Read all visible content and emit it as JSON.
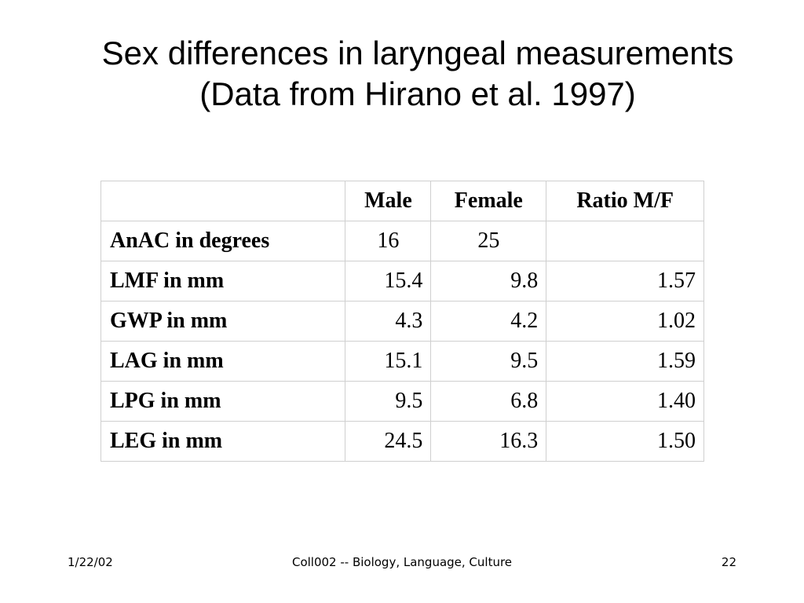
{
  "slide": {
    "title_line1": "Sex differences in laryngeal measurements",
    "title_line2": "(Data from Hirano et al. 1997)"
  },
  "table": {
    "headers": [
      "",
      "Male",
      "Female",
      "Ratio M/F"
    ],
    "rows": [
      {
        "label": "AnAC in degrees",
        "male": "16",
        "female": "25",
        "ratio": ""
      },
      {
        "label": "LMF in mm",
        "male": "15.4",
        "female": "9.8",
        "ratio": "1.57"
      },
      {
        "label": "GWP in mm",
        "male": "4.3",
        "female": "4.2",
        "ratio": "1.02"
      },
      {
        "label": "LAG in mm",
        "male": "15.1",
        "female": "9.5",
        "ratio": "1.59"
      },
      {
        "label": "LPG in mm",
        "male": "9.5",
        "female": "6.8",
        "ratio": "1.40"
      },
      {
        "label": "LEG in mm",
        "male": "24.5",
        "female": "16.3",
        "ratio": "1.50"
      }
    ]
  },
  "footer": {
    "date": "1/22/02",
    "course": "Coll002 -- Biology, Language, Culture",
    "page_number": "22"
  }
}
